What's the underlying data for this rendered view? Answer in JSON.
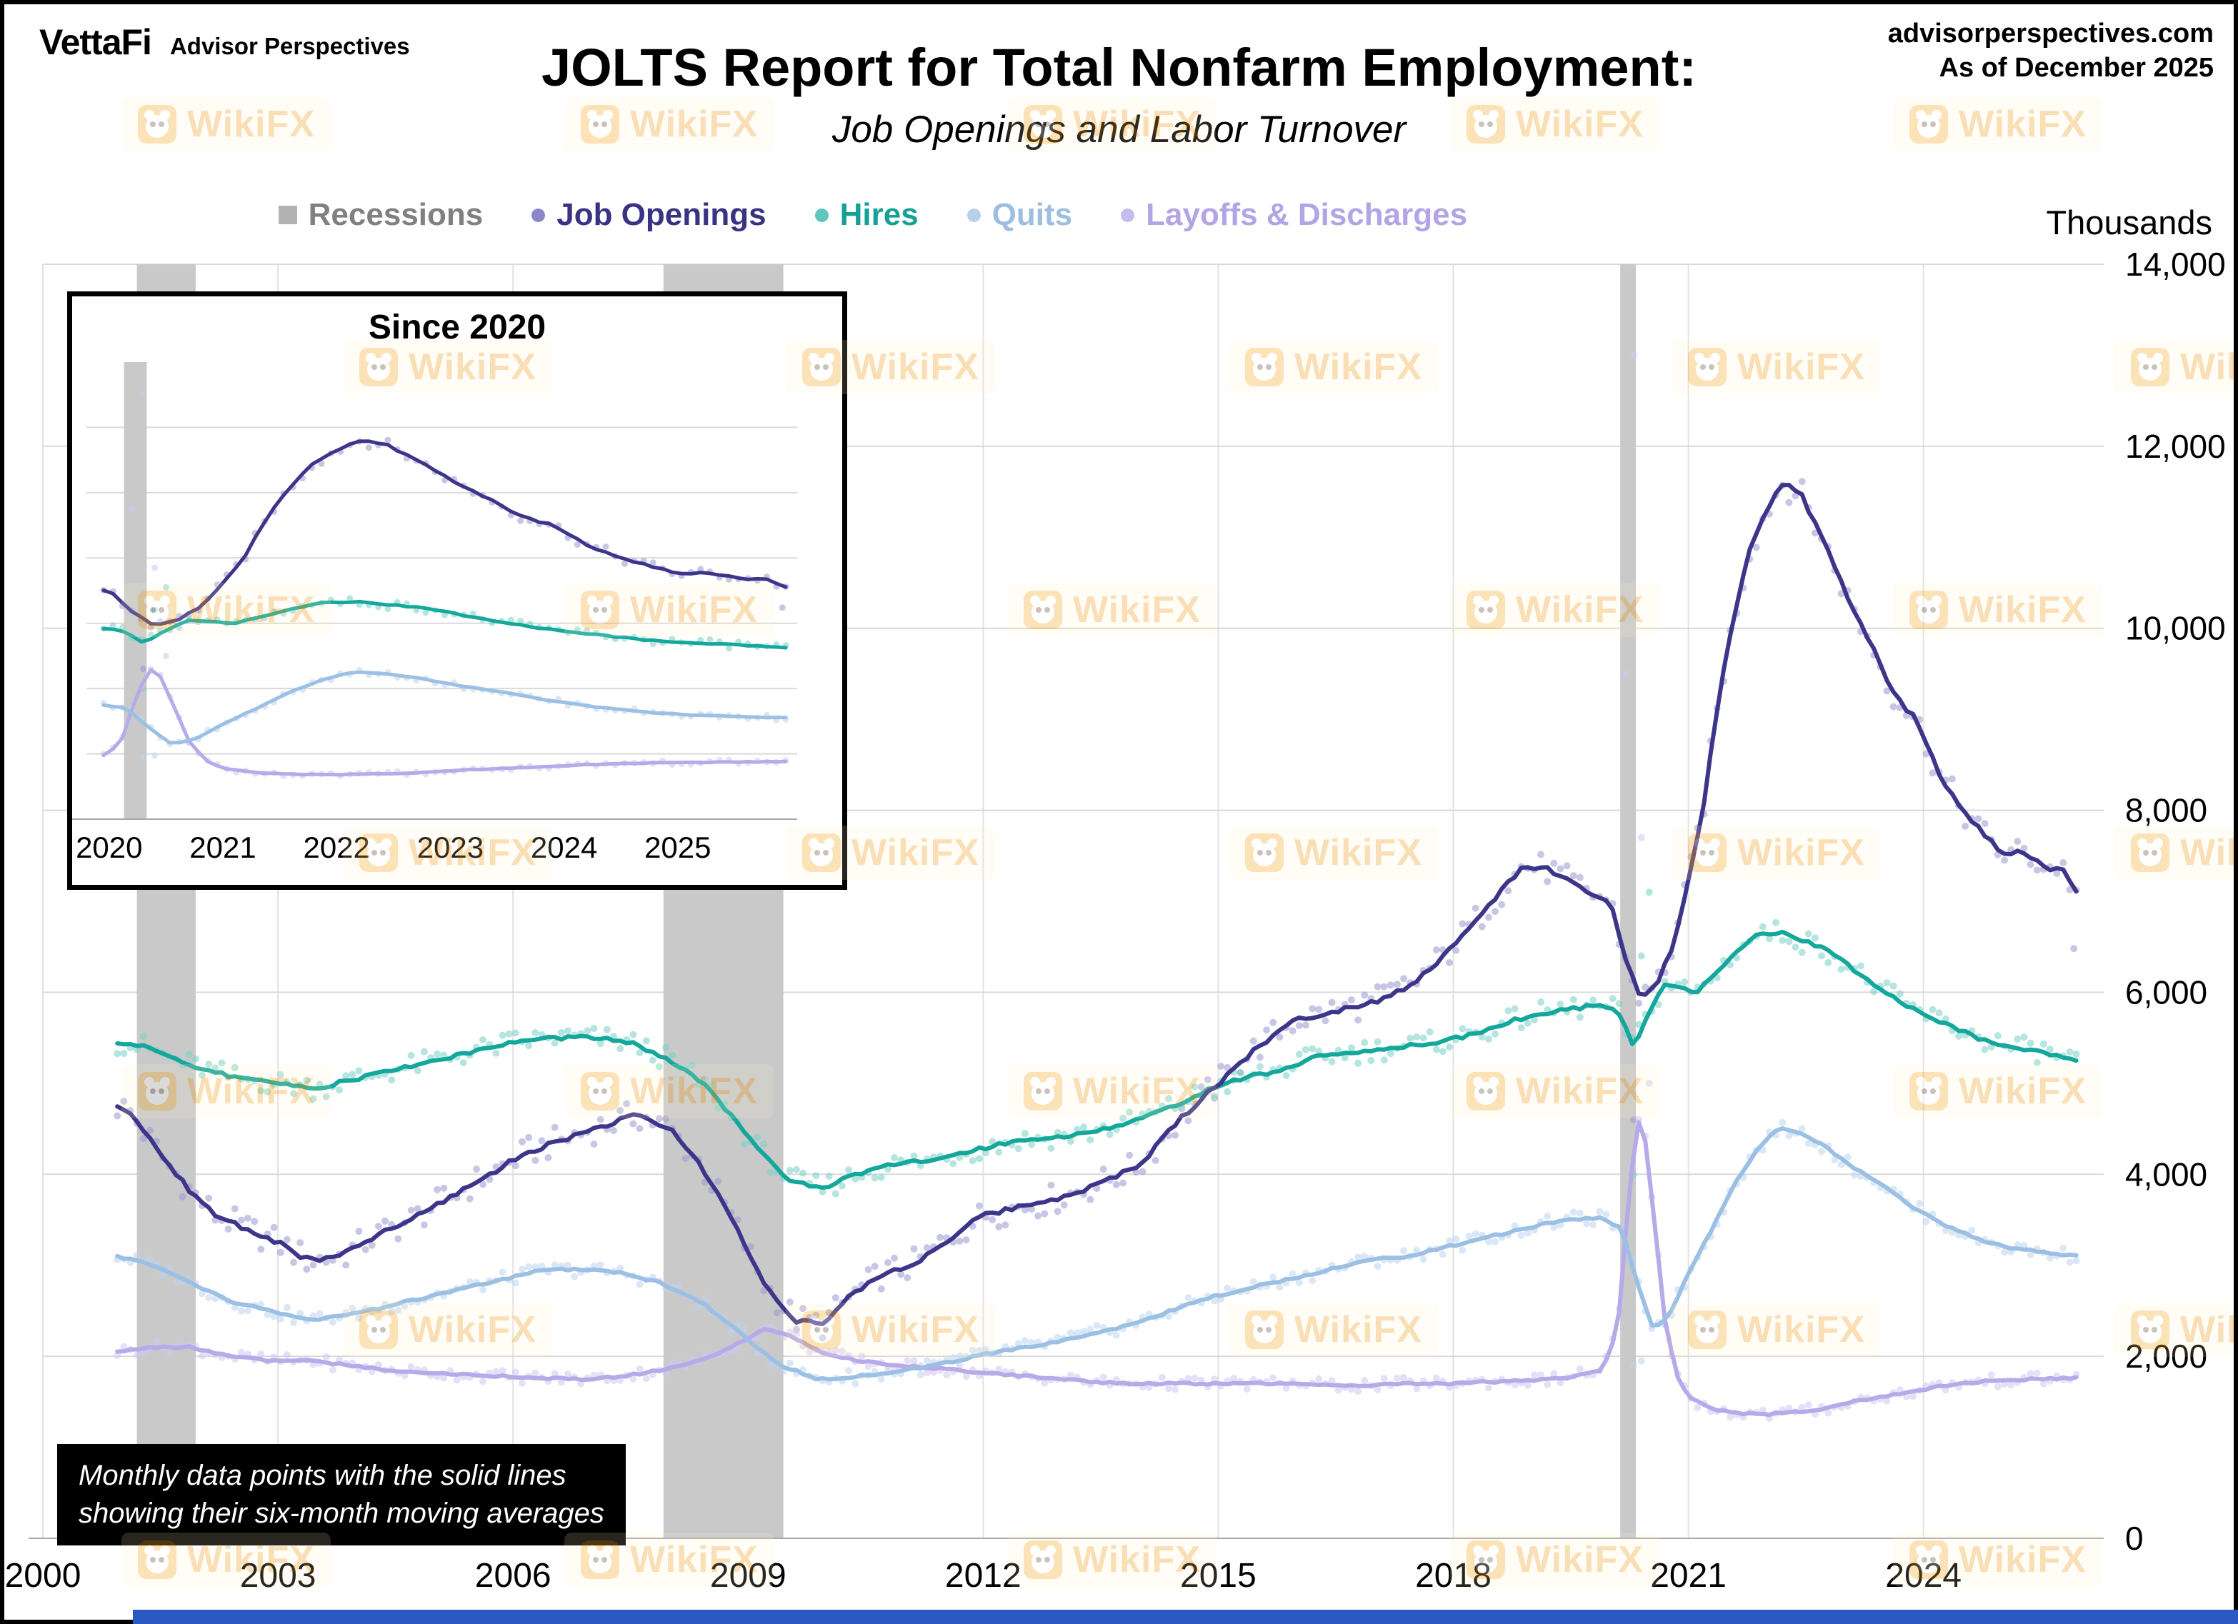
{
  "header": {
    "logo": "VettaFi",
    "logo_sub": "Advisor Perspectives",
    "site": "advisorperspectives.com",
    "as_of": "As of December 2025"
  },
  "title": "JOLTS Report for Total Nonfarm Employment:",
  "subtitle": "Job Openings and Labor Turnover",
  "units_label": "Thousands",
  "caption": {
    "line1": "Monthly data points with the solid lines",
    "line2": "showing their six-month moving averages"
  },
  "watermark": {
    "text": "WikiFX",
    "logo_color": "#f7a823",
    "text_color": "#ef9c1e"
  },
  "legend": [
    {
      "key": "recessions",
      "label": "Recessions",
      "color": "#808080",
      "marker": "square",
      "marker_color": "#b3b3b3"
    },
    {
      "key": "job-openings",
      "label": "Job Openings",
      "color": "#3a3384",
      "marker": "dot",
      "marker_color": "#8d87ca"
    },
    {
      "key": "hires",
      "label": "Hires",
      "color": "#17a096",
      "marker": "dot",
      "marker_color": "#5fc6bd"
    },
    {
      "key": "quits",
      "label": "Quits",
      "color": "#9dbede",
      "marker": "dot",
      "marker_color": "#b8d0ea"
    },
    {
      "key": "layoffs",
      "label": "Layoffs & Discharges",
      "color": "#b2a5e6",
      "marker": "dot",
      "marker_color": "#c6bcee"
    }
  ],
  "chart_data": {
    "type": "scatter",
    "title": "JOLTS Report for Total Nonfarm Employment: Job Openings and Labor Turnover",
    "ylabel": "Thousands",
    "main": {
      "xlim": [
        2000,
        2026.3
      ],
      "ylim": [
        0,
        14000
      ],
      "x_ticks": [
        2000,
        2003,
        2006,
        2009,
        2012,
        2015,
        2018,
        2021,
        2024
      ],
      "y_ticks": [
        0,
        2000,
        4000,
        6000,
        8000,
        10000,
        12000,
        14000
      ],
      "y_tick_labels": [
        "0",
        "2,000",
        "4,000",
        "6,000",
        "8,000",
        "10,000",
        "12,000",
        "14,000"
      ],
      "grid": true
    },
    "inset": {
      "title": "Since 2020",
      "xlim": [
        2019.8,
        2026.05
      ],
      "ylim": [
        0,
        14000
      ],
      "x_ticks": [
        2020,
        2021,
        2022,
        2023,
        2024,
        2025
      ],
      "grid_y_step": 2000
    },
    "recessions": [
      [
        2001.2,
        2001.95
      ],
      [
        2007.92,
        2009.45
      ],
      [
        2020.13,
        2020.33
      ]
    ],
    "series": [
      {
        "key": "job-openings",
        "name": "Job Openings",
        "line_color": "#3d3589",
        "dot_color": "#9d97d0",
        "jitter": 170,
        "points": [
          [
            2000.95,
            4750
          ],
          [
            2001.1,
            4700
          ],
          [
            2001.3,
            4450
          ],
          [
            2001.6,
            4100
          ],
          [
            2001.9,
            3800
          ],
          [
            2002.2,
            3550
          ],
          [
            2002.6,
            3400
          ],
          [
            2003.0,
            3250
          ],
          [
            2003.4,
            3050
          ],
          [
            2003.8,
            3100
          ],
          [
            2004.2,
            3300
          ],
          [
            2004.7,
            3500
          ],
          [
            2005.2,
            3750
          ],
          [
            2005.7,
            4000
          ],
          [
            2006.2,
            4250
          ],
          [
            2006.7,
            4400
          ],
          [
            2007.2,
            4550
          ],
          [
            2007.6,
            4650
          ],
          [
            2008.0,
            4500
          ],
          [
            2008.4,
            4100
          ],
          [
            2008.8,
            3500
          ],
          [
            2009.2,
            2800
          ],
          [
            2009.6,
            2400
          ],
          [
            2009.95,
            2350
          ],
          [
            2010.3,
            2650
          ],
          [
            2010.7,
            2900
          ],
          [
            2011.1,
            3000
          ],
          [
            2011.5,
            3250
          ],
          [
            2012.0,
            3550
          ],
          [
            2012.5,
            3650
          ],
          [
            2013.0,
            3750
          ],
          [
            2013.5,
            3900
          ],
          [
            2014.0,
            4100
          ],
          [
            2014.5,
            4600
          ],
          [
            2015.0,
            5000
          ],
          [
            2015.5,
            5400
          ],
          [
            2016.0,
            5700
          ],
          [
            2016.5,
            5800
          ],
          [
            2017.0,
            5900
          ],
          [
            2017.5,
            6100
          ],
          [
            2018.0,
            6500
          ],
          [
            2018.5,
            7000
          ],
          [
            2018.9,
            7400
          ],
          [
            2019.2,
            7350
          ],
          [
            2019.6,
            7150
          ],
          [
            2020.0,
            7000
          ],
          [
            2020.2,
            6350
          ],
          [
            2020.4,
            5900
          ],
          [
            2020.6,
            6100
          ],
          [
            2020.8,
            6500
          ],
          [
            2021.0,
            7200
          ],
          [
            2021.2,
            8100
          ],
          [
            2021.4,
            9300
          ],
          [
            2021.6,
            10200
          ],
          [
            2021.8,
            10900
          ],
          [
            2022.0,
            11300
          ],
          [
            2022.2,
            11600
          ],
          [
            2022.45,
            11450
          ],
          [
            2022.7,
            11000
          ],
          [
            2022.9,
            10600
          ],
          [
            2023.1,
            10200
          ],
          [
            2023.35,
            9800
          ],
          [
            2023.6,
            9300
          ],
          [
            2023.9,
            9000
          ],
          [
            2024.2,
            8400
          ],
          [
            2024.5,
            8000
          ],
          [
            2024.8,
            7700
          ],
          [
            2025.05,
            7500
          ],
          [
            2025.3,
            7550
          ],
          [
            2025.55,
            7350
          ],
          [
            2025.75,
            7400
          ],
          [
            2025.95,
            7100
          ]
        ],
        "outliers": [
          [
            2020.3,
            4600
          ],
          [
            2025.92,
            6480
          ]
        ]
      },
      {
        "key": "hires",
        "name": "Hires",
        "line_color": "#14a79b",
        "dot_color": "#79cfc7",
        "jitter": 130,
        "points": [
          [
            2000.95,
            5450
          ],
          [
            2001.3,
            5400
          ],
          [
            2001.7,
            5250
          ],
          [
            2002.1,
            5150
          ],
          [
            2002.5,
            5050
          ],
          [
            2003.0,
            5000
          ],
          [
            2003.5,
            4950
          ],
          [
            2004.0,
            5050
          ],
          [
            2004.5,
            5150
          ],
          [
            2005.0,
            5250
          ],
          [
            2005.5,
            5350
          ],
          [
            2006.0,
            5450
          ],
          [
            2006.5,
            5500
          ],
          [
            2007.0,
            5500
          ],
          [
            2007.5,
            5450
          ],
          [
            2008.0,
            5250
          ],
          [
            2008.5,
            4950
          ],
          [
            2009.0,
            4400
          ],
          [
            2009.5,
            3950
          ],
          [
            2009.95,
            3850
          ],
          [
            2010.4,
            4000
          ],
          [
            2010.8,
            4100
          ],
          [
            2011.3,
            4150
          ],
          [
            2011.8,
            4250
          ],
          [
            2012.3,
            4350
          ],
          [
            2012.8,
            4400
          ],
          [
            2013.3,
            4450
          ],
          [
            2013.8,
            4550
          ],
          [
            2014.3,
            4700
          ],
          [
            2014.8,
            4900
          ],
          [
            2015.3,
            5050
          ],
          [
            2015.8,
            5150
          ],
          [
            2016.3,
            5300
          ],
          [
            2016.8,
            5350
          ],
          [
            2017.3,
            5400
          ],
          [
            2017.8,
            5450
          ],
          [
            2018.3,
            5550
          ],
          [
            2018.8,
            5700
          ],
          [
            2019.3,
            5800
          ],
          [
            2019.8,
            5850
          ],
          [
            2020.1,
            5800
          ],
          [
            2020.3,
            5400
          ],
          [
            2020.5,
            5800
          ],
          [
            2020.7,
            6100
          ],
          [
            2020.9,
            6050
          ],
          [
            2021.1,
            6000
          ],
          [
            2021.3,
            6150
          ],
          [
            2021.6,
            6450
          ],
          [
            2021.9,
            6650
          ],
          [
            2022.2,
            6650
          ],
          [
            2022.5,
            6550
          ],
          [
            2022.8,
            6450
          ],
          [
            2023.1,
            6250
          ],
          [
            2023.5,
            6000
          ],
          [
            2023.9,
            5800
          ],
          [
            2024.3,
            5650
          ],
          [
            2024.7,
            5500
          ],
          [
            2025.1,
            5400
          ],
          [
            2025.5,
            5350
          ],
          [
            2025.95,
            5250
          ]
        ],
        "outliers": [
          [
            2020.3,
            4000
          ],
          [
            2020.4,
            6400
          ],
          [
            2020.5,
            7100
          ]
        ]
      },
      {
        "key": "quits",
        "name": "Quits",
        "line_color": "#9cc0e4",
        "dot_color": "#bcd4ee",
        "jitter": 80,
        "points": [
          [
            2000.95,
            3100
          ],
          [
            2001.4,
            3000
          ],
          [
            2001.9,
            2800
          ],
          [
            2002.4,
            2600
          ],
          [
            2002.9,
            2500
          ],
          [
            2003.4,
            2400
          ],
          [
            2003.9,
            2450
          ],
          [
            2004.4,
            2550
          ],
          [
            2004.9,
            2650
          ],
          [
            2005.4,
            2750
          ],
          [
            2005.9,
            2850
          ],
          [
            2006.4,
            2950
          ],
          [
            2006.9,
            2950
          ],
          [
            2007.4,
            2920
          ],
          [
            2007.9,
            2800
          ],
          [
            2008.4,
            2600
          ],
          [
            2008.9,
            2250
          ],
          [
            2009.4,
            1900
          ],
          [
            2009.9,
            1750
          ],
          [
            2010.4,
            1780
          ],
          [
            2010.9,
            1830
          ],
          [
            2011.4,
            1900
          ],
          [
            2011.9,
            2000
          ],
          [
            2012.4,
            2080
          ],
          [
            2012.9,
            2150
          ],
          [
            2013.4,
            2250
          ],
          [
            2013.9,
            2350
          ],
          [
            2014.4,
            2500
          ],
          [
            2014.9,
            2650
          ],
          [
            2015.4,
            2750
          ],
          [
            2015.9,
            2850
          ],
          [
            2016.4,
            2950
          ],
          [
            2016.9,
            3050
          ],
          [
            2017.4,
            3100
          ],
          [
            2017.9,
            3200
          ],
          [
            2018.4,
            3300
          ],
          [
            2018.9,
            3400
          ],
          [
            2019.4,
            3500
          ],
          [
            2019.9,
            3520
          ],
          [
            2020.15,
            3400
          ],
          [
            2020.35,
            2800
          ],
          [
            2020.55,
            2300
          ],
          [
            2020.75,
            2450
          ],
          [
            2021.0,
            2900
          ],
          [
            2021.3,
            3400
          ],
          [
            2021.6,
            3900
          ],
          [
            2021.9,
            4300
          ],
          [
            2022.15,
            4500
          ],
          [
            2022.45,
            4450
          ],
          [
            2022.75,
            4300
          ],
          [
            2023.05,
            4100
          ],
          [
            2023.45,
            3900
          ],
          [
            2023.85,
            3650
          ],
          [
            2024.25,
            3450
          ],
          [
            2024.65,
            3300
          ],
          [
            2025.05,
            3200
          ],
          [
            2025.45,
            3150
          ],
          [
            2025.95,
            3100
          ]
        ],
        "outliers": [
          [
            2020.3,
            1900
          ],
          [
            2020.4,
            1950
          ]
        ]
      },
      {
        "key": "layoffs",
        "name": "Layoffs & Discharges",
        "line_color": "#b6aae8",
        "dot_color": "#cfc7f0",
        "jitter": 70,
        "points": [
          [
            2000.95,
            2050
          ],
          [
            2001.4,
            2100
          ],
          [
            2001.9,
            2100
          ],
          [
            2002.4,
            2000
          ],
          [
            2002.9,
            1950
          ],
          [
            2003.4,
            1950
          ],
          [
            2003.9,
            1900
          ],
          [
            2004.4,
            1850
          ],
          [
            2004.9,
            1820
          ],
          [
            2005.4,
            1800
          ],
          [
            2005.9,
            1780
          ],
          [
            2006.4,
            1760
          ],
          [
            2006.9,
            1750
          ],
          [
            2007.4,
            1780
          ],
          [
            2007.9,
            1850
          ],
          [
            2008.4,
            1950
          ],
          [
            2008.9,
            2150
          ],
          [
            2009.2,
            2300
          ],
          [
            2009.5,
            2250
          ],
          [
            2009.9,
            2050
          ],
          [
            2010.4,
            1950
          ],
          [
            2010.9,
            1900
          ],
          [
            2011.4,
            1870
          ],
          [
            2011.9,
            1830
          ],
          [
            2012.4,
            1790
          ],
          [
            2012.9,
            1760
          ],
          [
            2013.4,
            1720
          ],
          [
            2013.9,
            1700
          ],
          [
            2014.4,
            1700
          ],
          [
            2014.9,
            1700
          ],
          [
            2015.4,
            1700
          ],
          [
            2015.9,
            1700
          ],
          [
            2016.4,
            1680
          ],
          [
            2016.9,
            1680
          ],
          [
            2017.4,
            1700
          ],
          [
            2017.9,
            1700
          ],
          [
            2018.4,
            1720
          ],
          [
            2018.9,
            1730
          ],
          [
            2019.4,
            1760
          ],
          [
            2019.9,
            1850
          ],
          [
            2020.1,
            2300
          ],
          [
            2020.25,
            3900
          ],
          [
            2020.4,
            4750
          ],
          [
            2020.55,
            3600
          ],
          [
            2020.7,
            2400
          ],
          [
            2020.85,
            1800
          ],
          [
            2021.0,
            1550
          ],
          [
            2021.3,
            1420
          ],
          [
            2021.6,
            1380
          ],
          [
            2021.9,
            1360
          ],
          [
            2022.3,
            1380
          ],
          [
            2022.7,
            1420
          ],
          [
            2023.1,
            1500
          ],
          [
            2023.5,
            1560
          ],
          [
            2023.9,
            1620
          ],
          [
            2024.3,
            1680
          ],
          [
            2024.7,
            1720
          ],
          [
            2025.1,
            1740
          ],
          [
            2025.5,
            1750
          ],
          [
            2025.95,
            1760
          ]
        ],
        "outliers": [
          [
            2020.2,
            9500
          ],
          [
            2020.3,
            13000
          ],
          [
            2020.4,
            7700
          ],
          [
            2020.5,
            5000
          ]
        ]
      }
    ]
  }
}
